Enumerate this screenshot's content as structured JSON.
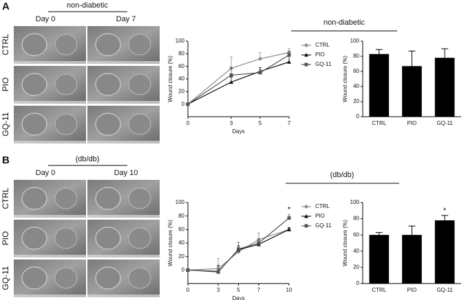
{
  "panels": [
    {
      "label": "A",
      "group": "non-diabetic",
      "days": [
        "Day 0",
        "Day 7"
      ],
      "rows": [
        "CTRL",
        "PIO",
        "GQ-11"
      ]
    },
    {
      "label": "B",
      "group": "(db/db)",
      "days": [
        "Day 0",
        "Day 10"
      ],
      "rows": [
        "CTRL",
        "PIO",
        "GQ-11"
      ]
    }
  ],
  "chart_data": [
    {
      "type": "line",
      "x": [
        0,
        3,
        5,
        7
      ],
      "xlim": [
        0,
        7
      ],
      "xticks": [
        0,
        3,
        5,
        7
      ],
      "ylim": [
        -20,
        100
      ],
      "yticks": [
        0,
        20,
        40,
        60,
        80,
        100
      ],
      "xlabel": "Days",
      "ylabel": "Wound closure (%)",
      "series": [
        {
          "name": "CTRL",
          "color": "#8c8c8c",
          "marker": "circle",
          "values": [
            0,
            57,
            72,
            82
          ],
          "errors": [
            0,
            18,
            10,
            6
          ]
        },
        {
          "name": "PIO",
          "color": "#111111",
          "marker": "triangle",
          "values": [
            0,
            35,
            52,
            67
          ],
          "errors": [
            0,
            8,
            6,
            10
          ]
        },
        {
          "name": "GQ-11",
          "color": "#555555",
          "marker": "square",
          "values": [
            0,
            46,
            50,
            78
          ],
          "errors": [
            0,
            12,
            5,
            6
          ]
        }
      ]
    },
    {
      "type": "bar",
      "categories": [
        "CTRL",
        "PIO",
        "GQ-11"
      ],
      "values": [
        83,
        67,
        78
      ],
      "errors": [
        6,
        20,
        12
      ],
      "color": "#000000",
      "ylim": [
        0,
        100
      ],
      "yticks": [
        0,
        20,
        40,
        60,
        80,
        100
      ],
      "ylabel": "Wound closure (%)"
    },
    {
      "type": "line",
      "x": [
        0,
        3,
        5,
        7,
        10
      ],
      "xlim": [
        0,
        10
      ],
      "xticks": [
        0,
        3,
        5,
        7,
        10
      ],
      "ylim": [
        -20,
        100
      ],
      "yticks": [
        0,
        20,
        40,
        60,
        80,
        100
      ],
      "xlabel": "Days",
      "ylabel": "Wound closure (%)",
      "significance": {
        "label": "*",
        "series": "GQ-11",
        "x": 10
      },
      "series": [
        {
          "name": "CTRL",
          "color": "#8c8c8c",
          "marker": "circle",
          "values": [
            0,
            2,
            27,
            45,
            60
          ],
          "errors": [
            0,
            15,
            8,
            10,
            3
          ]
        },
        {
          "name": "PIO",
          "color": "#111111",
          "marker": "triangle",
          "values": [
            0,
            -2,
            30,
            38,
            60
          ],
          "errors": [
            0,
            8,
            6,
            4,
            3
          ]
        },
        {
          "name": "GQ-11",
          "color": "#555555",
          "marker": "square",
          "values": [
            0,
            -3,
            31,
            40,
            77
          ],
          "errors": [
            0,
            10,
            10,
            6,
            5
          ]
        }
      ]
    },
    {
      "type": "bar",
      "categories": [
        "CTRL",
        "PIO",
        "GQ-11"
      ],
      "values": [
        60,
        60,
        78
      ],
      "errors": [
        3,
        11,
        6
      ],
      "color": "#000000",
      "ylim": [
        0,
        100
      ],
      "yticks": [
        0,
        20,
        40,
        60,
        80,
        100
      ],
      "ylabel": "Wound closure (%)",
      "significance": {
        "label": "*",
        "category": "GQ-11"
      }
    }
  ]
}
